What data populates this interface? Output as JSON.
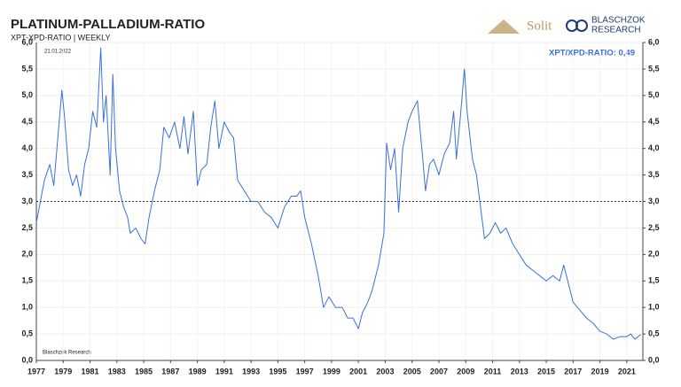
{
  "chart_data": {
    "type": "line",
    "title": "PLATINUM-PALLADIUM-RATIO",
    "subtitle": "XPT-XPD-RATIO | WEEKLY",
    "date_label": "21.01.2022",
    "annotation": "XPT/XPD-RATIO: 0,49",
    "source": "Blaschzok  Research",
    "logos": {
      "solit": "Solit",
      "blaschzok_top": "BLASCHZOK",
      "blaschzok_bottom": "RESEARCH"
    },
    "x": [
      1977.0,
      1977.3,
      1977.6,
      1978.0,
      1978.3,
      1978.6,
      1978.9,
      1979.1,
      1979.4,
      1979.7,
      1980.0,
      1980.3,
      1980.6,
      1980.9,
      1981.2,
      1981.5,
      1981.8,
      1982.0,
      1982.2,
      1982.5,
      1982.7,
      1982.9,
      1983.2,
      1983.5,
      1983.8,
      1984.0,
      1984.4,
      1984.8,
      1985.1,
      1985.4,
      1985.8,
      1986.2,
      1986.5,
      1986.9,
      1987.3,
      1987.7,
      1988.0,
      1988.3,
      1988.7,
      1989.0,
      1989.3,
      1989.7,
      1990.0,
      1990.3,
      1990.6,
      1991.0,
      1991.4,
      1991.7,
      1992.0,
      1992.5,
      1993.0,
      1993.5,
      1994.0,
      1994.5,
      1995.0,
      1995.5,
      1996.0,
      1996.4,
      1996.7,
      1997.0,
      1997.5,
      1998.0,
      1998.4,
      1998.8,
      1999.3,
      1999.8,
      2000.2,
      2000.6,
      2001.0,
      2001.3,
      2001.7,
      2002.0,
      2002.5,
      2002.9,
      2003.1,
      2003.4,
      2003.7,
      2004.0,
      2004.3,
      2004.7,
      2005.0,
      2005.4,
      2005.8,
      2006.0,
      2006.3,
      2006.6,
      2007.0,
      2007.4,
      2007.8,
      2008.1,
      2008.3,
      2008.6,
      2008.9,
      2009.1,
      2009.5,
      2009.8,
      2010.1,
      2010.4,
      2010.8,
      2011.2,
      2011.6,
      2012.0,
      2012.5,
      2013.0,
      2013.5,
      2014.0,
      2014.5,
      2015.0,
      2015.5,
      2016.0,
      2016.3,
      2016.7,
      2017.0,
      2017.5,
      2018.0,
      2018.5,
      2019.0,
      2019.5,
      2020.0,
      2020.5,
      2021.0,
      2021.3,
      2021.6,
      2022.05
    ],
    "series": [
      {
        "color": "#3b6fe0",
        "values": [
          2.6,
          3.0,
          3.4,
          3.7,
          3.3,
          4.2,
          5.1,
          4.6,
          3.6,
          3.3,
          3.5,
          3.1,
          3.7,
          4.0,
          4.7,
          4.4,
          5.9,
          4.5,
          5.0,
          3.5,
          5.4,
          4.0,
          3.2,
          2.9,
          2.7,
          2.4,
          2.5,
          2.3,
          2.2,
          2.7,
          3.2,
          3.6,
          4.4,
          4.2,
          4.5,
          4.0,
          4.6,
          3.9,
          4.7,
          3.3,
          3.6,
          3.7,
          4.4,
          4.9,
          4.0,
          4.5,
          4.3,
          4.2,
          3.4,
          3.2,
          3.0,
          3.0,
          2.8,
          2.7,
          2.5,
          2.9,
          3.1,
          3.1,
          3.2,
          2.7,
          2.2,
          1.6,
          1.0,
          1.2,
          1.0,
          1.0,
          0.8,
          0.8,
          0.6,
          0.9,
          1.1,
          1.3,
          1.8,
          2.4,
          4.1,
          3.6,
          4.0,
          2.8,
          4.0,
          4.5,
          4.7,
          4.9,
          3.8,
          3.2,
          3.7,
          3.8,
          3.5,
          3.9,
          4.1,
          4.7,
          3.8,
          4.6,
          5.5,
          4.7,
          3.8,
          3.5,
          2.9,
          2.3,
          2.4,
          2.6,
          2.4,
          2.5,
          2.2,
          2.0,
          1.8,
          1.7,
          1.6,
          1.5,
          1.6,
          1.5,
          1.8,
          1.4,
          1.1,
          0.95,
          0.8,
          0.7,
          0.55,
          0.5,
          0.4,
          0.45,
          0.45,
          0.5,
          0.4,
          0.49
        ]
      }
    ],
    "reference_line": 3,
    "xlim": [
      1977,
      2022.2
    ],
    "xticks": [
      1977,
      1979,
      1981,
      1983,
      1985,
      1987,
      1989,
      1991,
      1993,
      1995,
      1997,
      1999,
      2001,
      2003,
      2005,
      2007,
      2009,
      2011,
      2013,
      2015,
      2017,
      2019,
      2021
    ],
    "ylim": [
      0,
      6
    ],
    "yticks": [
      {
        "value": 0,
        "label": "0,0"
      },
      {
        "value": 0.5,
        "label": "0,5"
      },
      {
        "value": 1,
        "label": "1,0"
      },
      {
        "value": 1.5,
        "label": "1,5"
      },
      {
        "value": 2,
        "label": "2,0"
      },
      {
        "value": 2.5,
        "label": "2,5"
      },
      {
        "value": 3,
        "label": "3,0"
      },
      {
        "value": 3.5,
        "label": "3,5"
      },
      {
        "value": 4,
        "label": "4,0"
      },
      {
        "value": 4.5,
        "label": "4,5"
      },
      {
        "value": 5,
        "label": "5,0"
      },
      {
        "value": 5.5,
        "label": "5,5"
      },
      {
        "value": 6,
        "label": "6,0"
      }
    ],
    "y2lim": [
      0,
      6
    ],
    "y2ticks": [
      {
        "value": 0,
        "label": "0,0"
      },
      {
        "value": 0.5,
        "label": "0,5"
      },
      {
        "value": 1,
        "label": "1,0"
      },
      {
        "value": 1.5,
        "label": "1,5"
      },
      {
        "value": 2,
        "label": "2,0"
      },
      {
        "value": 2.5,
        "label": "2,5"
      },
      {
        "value": 3,
        "label": "3,0"
      },
      {
        "value": 3.5,
        "label": "3,5"
      },
      {
        "value": 4,
        "label": "4,0"
      },
      {
        "value": 4.5,
        "label": "4,5"
      },
      {
        "value": 5,
        "label": "5,0"
      },
      {
        "value": 5.5,
        "label": "5,5"
      },
      {
        "value": 6,
        "label": "6,0"
      }
    ],
    "grid": true
  }
}
